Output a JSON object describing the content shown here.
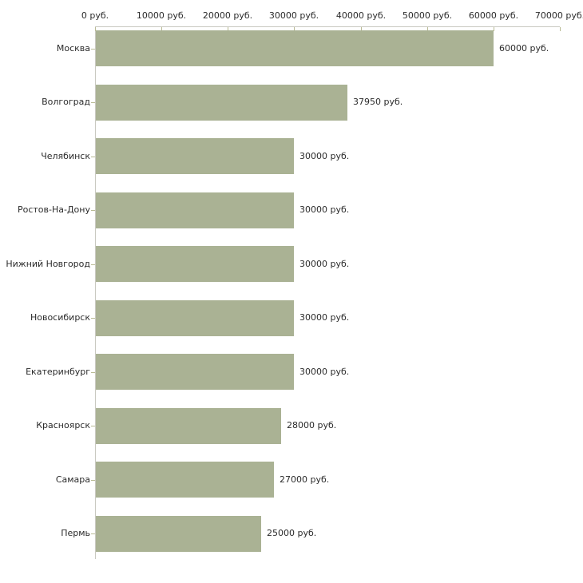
{
  "chart_data": {
    "type": "bar",
    "orientation": "horizontal",
    "title": "",
    "xlabel": "",
    "ylabel": "",
    "unit": "руб.",
    "xlim": [
      0,
      70000
    ],
    "x_tick_step": 10000,
    "x_tick_labels": [
      "0 руб.",
      "10000 руб.",
      "20000 руб.",
      "30000 руб.",
      "40000 руб.",
      "50000 руб.",
      "60000 руб.",
      "70000 руб."
    ],
    "grid": false,
    "legend": false,
    "categories": [
      "Москва",
      "Волгоград",
      "Челябинск",
      "Ростов-На-Дону",
      "Нижний Новгород",
      "Новосибирск",
      "Екатеринбург",
      "Красноярск",
      "Самара",
      "Пермь"
    ],
    "values": [
      60000,
      37950,
      30000,
      30000,
      30000,
      30000,
      30000,
      28000,
      27000,
      25000
    ],
    "value_labels": [
      "60000 руб.",
      "37950 руб.",
      "30000 руб.",
      "30000 руб.",
      "30000 руб.",
      "30000 руб.",
      "30000 руб.",
      "28000 руб.",
      "27000 руб.",
      "25000 руб."
    ],
    "colors": {
      "bar": "#aab294",
      "axis_line": "#c9c9c1",
      "tick": "#b9bb95",
      "text": "#2b2b2b",
      "background": "#ffffff"
    }
  }
}
